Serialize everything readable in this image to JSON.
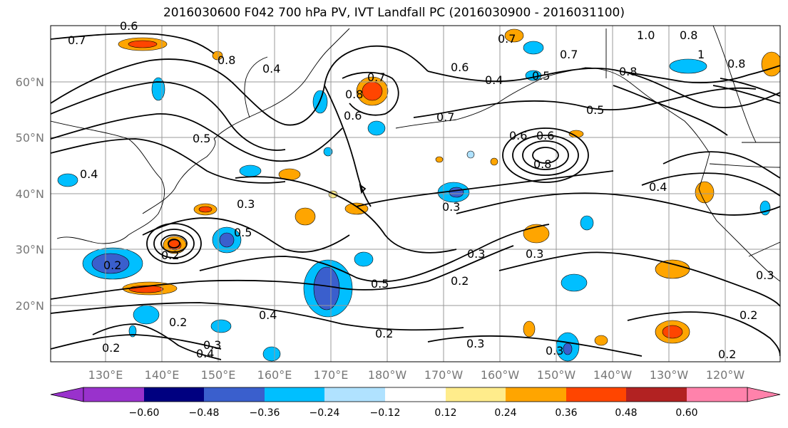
{
  "title": "2016030600 F042 700 hPa PV, IVT Landfall PC (2016030900 - 2016031100)",
  "lat_labels": [
    "60°N",
    "50°N",
    "40°N",
    "30°N",
    "20°N"
  ],
  "lon_labels": [
    "130°E",
    "140°E",
    "150°E",
    "160°E",
    "170°E",
    "180°W",
    "170°W",
    "160°W",
    "150°W",
    "140°W",
    "130°W",
    "120°W"
  ],
  "colorbar": {
    "colors": [
      "#9932CC",
      "#000080",
      "#3A5FCD",
      "#00BFFF",
      "#B0E2FF",
      "#FFFFFF",
      "#FFEC8B",
      "#FFA500",
      "#FF4500",
      "#B22222",
      "#FF82AB"
    ],
    "tick_labels": [
      "−0.60",
      "−0.48",
      "−0.36",
      "−0.24",
      "−0.12",
      "0.12",
      "0.24",
      "0.36",
      "0.48",
      "0.60"
    ]
  },
  "contour_labels": [
    {
      "id": "c1",
      "text": "0.7"
    },
    {
      "id": "c2",
      "text": "0.6"
    },
    {
      "id": "c3",
      "text": "0.8"
    },
    {
      "id": "c4",
      "text": "0.4"
    },
    {
      "id": "c5",
      "text": "0.5"
    },
    {
      "id": "c6",
      "text": "0.8"
    },
    {
      "id": "c7",
      "text": "0.6"
    },
    {
      "id": "c8",
      "text": "0.7"
    },
    {
      "id": "c9",
      "text": "0.6"
    },
    {
      "id": "c10",
      "text": "0.4"
    },
    {
      "id": "c11",
      "text": "0.7"
    },
    {
      "id": "c12",
      "text": "1.0"
    },
    {
      "id": "c13",
      "text": "0.8"
    },
    {
      "id": "c14",
      "text": "0.7"
    },
    {
      "id": "c15",
      "text": "0.8"
    },
    {
      "id": "c16",
      "text": "0.5"
    },
    {
      "id": "c17",
      "text": "1"
    },
    {
      "id": "c18",
      "text": "0.8"
    },
    {
      "id": "c19",
      "text": "0.6"
    },
    {
      "id": "c20",
      "text": "0.7"
    },
    {
      "id": "c21",
      "text": "0.5"
    },
    {
      "id": "c22",
      "text": "0.6"
    },
    {
      "id": "c23",
      "text": "0.8"
    },
    {
      "id": "c24",
      "text": "0.4"
    },
    {
      "id": "c25",
      "text": "0.4"
    },
    {
      "id": "c26",
      "text": "0.3"
    },
    {
      "id": "c27",
      "text": "0.3"
    },
    {
      "id": "c28",
      "text": "0.5"
    },
    {
      "id": "c29",
      "text": "0.3"
    },
    {
      "id": "c30",
      "text": "0.2"
    },
    {
      "id": "c31",
      "text": "0.2"
    },
    {
      "id": "c32",
      "text": "0.5"
    },
    {
      "id": "c33",
      "text": "0.3"
    },
    {
      "id": "c34",
      "text": "0.2"
    },
    {
      "id": "c35",
      "text": "0.4"
    },
    {
      "id": "c36",
      "text": "0.2"
    },
    {
      "id": "c37",
      "text": "0.3"
    },
    {
      "id": "c38",
      "text": "0.4"
    },
    {
      "id": "c39",
      "text": "0.2"
    },
    {
      "id": "c40",
      "text": "0.3"
    },
    {
      "id": "c41",
      "text": "0.2"
    },
    {
      "id": "c42",
      "text": "0.3"
    },
    {
      "id": "c43",
      "text": "0.2"
    },
    {
      "id": "c44",
      "text": "0.2"
    },
    {
      "id": "c45",
      "text": "0.3"
    }
  ]
}
